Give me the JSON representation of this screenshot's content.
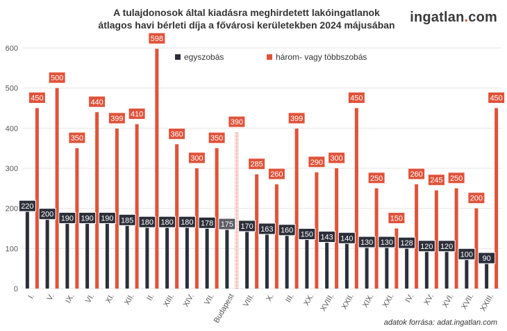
{
  "header": {
    "title_line1": "A tulajdonosok által kiadásra meghirdetett lakóingatlanok",
    "title_line2": "átlagos havi bérleti díja a fővárosi kerületekben 2024 májusában"
  },
  "brand": {
    "name": "ingatlan",
    "dot": ".",
    "tld": "com"
  },
  "footer": {
    "source": "adatok forrása: adat.ingatlan.com"
  },
  "colors": {
    "one_room": "#2b2f3a",
    "multi_room": "#e0533a",
    "grid": "#e6e6e6",
    "axis_text": "#555555"
  },
  "chart_data": {
    "type": "bar",
    "title": "A tulajdonosok által kiadásra meghirdetett lakóingatlanok átlagos havi bérleti díja a fővárosi kerületekben 2024 májusában",
    "ylim": [
      0,
      600
    ],
    "yticks": [
      "0",
      "100",
      "200",
      "300",
      "400",
      "500",
      "600"
    ],
    "grid": true,
    "legend_position": "top",
    "categories": [
      "I.",
      "V.",
      "IX.",
      "VI.",
      "XI.",
      "XII.",
      "II.",
      "XIII.",
      "XIV.",
      "VII.",
      "Budapest",
      "VIII.",
      "X.",
      "III.",
      "XX.",
      "XVIII.",
      "XXII.",
      "XIX.",
      "XXI.",
      "IV.",
      "XV.",
      "XVI.",
      "XVII.",
      "XXIII."
    ],
    "series": [
      {
        "name": "egyszobás",
        "values": [
          220,
          200,
          190,
          190,
          190,
          185,
          180,
          180,
          180,
          178,
          175,
          170,
          163,
          160,
          150,
          143,
          140,
          130,
          130,
          128,
          120,
          120,
          100,
          90
        ]
      },
      {
        "name": "három- vagy többszobás",
        "values": [
          450,
          500,
          350,
          440,
          399,
          410,
          598,
          360,
          300,
          350,
          390,
          285,
          260,
          399,
          290,
          300,
          450,
          250,
          150,
          260,
          245,
          250,
          200,
          450
        ]
      }
    ]
  }
}
